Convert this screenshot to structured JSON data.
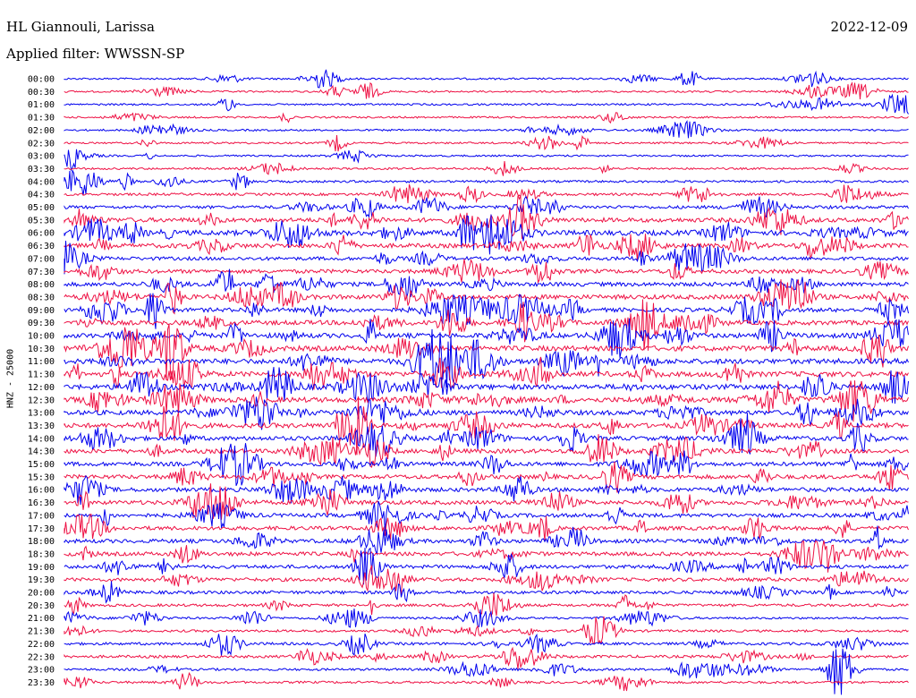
{
  "header": {
    "station": "HL Giannouli, Larissa",
    "date": "2022-12-09",
    "filter": "Applied filter: WWSSN-SP"
  },
  "channel_label": "HNZ - 25000",
  "colors": {
    "trace_a": "#0000ee",
    "trace_b": "#ee1144",
    "text": "#000000",
    "background": "#ffffff"
  },
  "rows": [
    "00:00",
    "00:30",
    "01:00",
    "01:30",
    "02:00",
    "02:30",
    "03:00",
    "03:30",
    "04:00",
    "04:30",
    "05:00",
    "05:30",
    "06:00",
    "06:30",
    "07:00",
    "07:30",
    "08:00",
    "08:30",
    "09:00",
    "09:30",
    "10:00",
    "10:30",
    "11:00",
    "11:30",
    "12:00",
    "12:30",
    "13:00",
    "13:30",
    "14:00",
    "14:30",
    "15:00",
    "15:30",
    "16:00",
    "16:30",
    "17:00",
    "17:30",
    "18:00",
    "18:30",
    "19:00",
    "19:30",
    "20:00",
    "20:30",
    "21:00",
    "21:30",
    "22:00",
    "22:30",
    "23:00",
    "23:30"
  ],
  "activity_level": [
    0.18,
    0.18,
    0.2,
    0.18,
    0.2,
    0.18,
    0.18,
    0.22,
    0.3,
    0.35,
    0.5,
    0.8,
    1.0,
    0.8,
    0.6,
    0.7,
    0.75,
    0.85,
    0.75,
    0.85,
    0.9,
    1.0,
    1.0,
    1.0,
    1.0,
    1.0,
    0.9,
    0.9,
    0.8,
    0.8,
    0.75,
    0.75,
    0.75,
    0.75,
    0.7,
    0.7,
    0.7,
    0.7,
    0.6,
    0.6,
    0.5,
    0.4,
    0.25,
    0.3,
    0.4,
    0.4,
    0.3,
    0.3
  ]
}
